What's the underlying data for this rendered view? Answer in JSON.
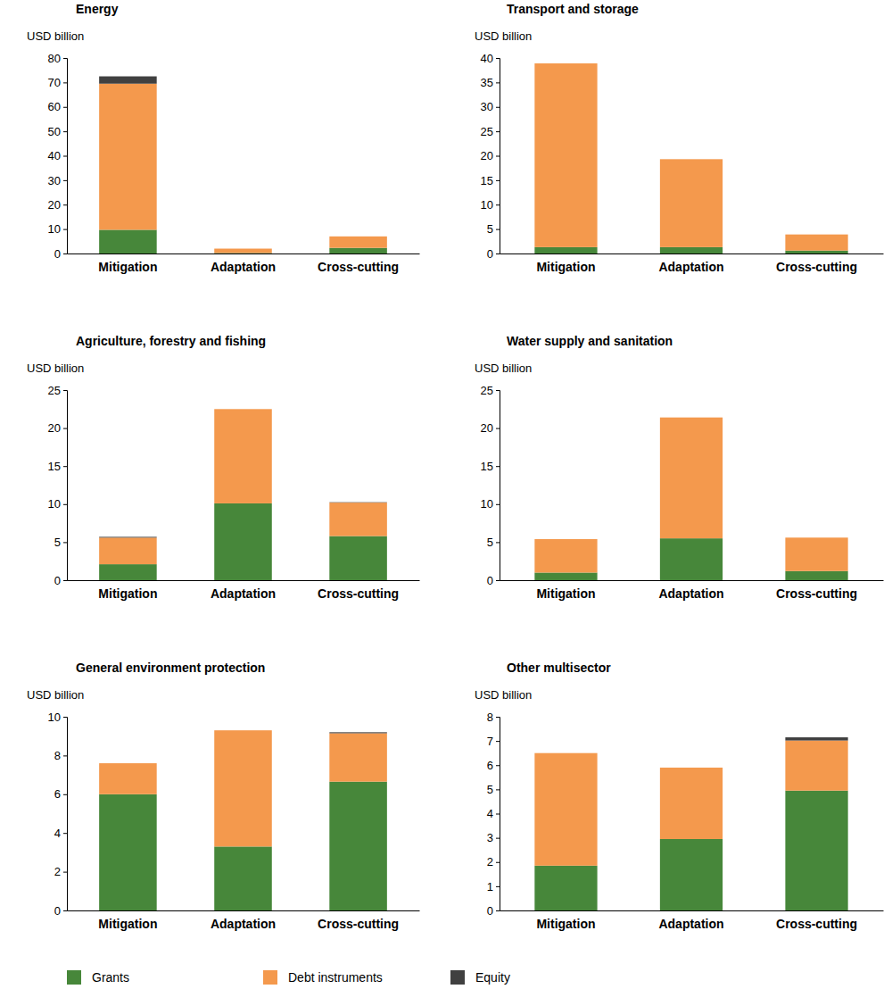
{
  "chart_data": [
    {
      "type": "bar",
      "title": "Energy",
      "ylabel": "USD billion",
      "stacked": true,
      "categories": [
        "Mitigation",
        "Adaptation",
        "Cross-cutting"
      ],
      "series": [
        {
          "name": "Grants",
          "color": "#47873a",
          "values": [
            9.7,
            0.2,
            2.3
          ]
        },
        {
          "name": "Debt instruments",
          "color": "#f4994d",
          "values": [
            59.8,
            1.8,
            4.7
          ]
        },
        {
          "name": "Equity",
          "color": "#404040",
          "values": [
            3.0,
            0,
            0
          ]
        }
      ],
      "ylim": [
        0,
        80
      ],
      "yticks": [
        0,
        10,
        20,
        30,
        40,
        50,
        60,
        70,
        80
      ]
    },
    {
      "type": "bar",
      "title": "Transport and storage",
      "ylabel": "USD billion",
      "stacked": true,
      "categories": [
        "Mitigation",
        "Adaptation",
        "Cross-cutting"
      ],
      "series": [
        {
          "name": "Grants",
          "color": "#47873a",
          "values": [
            1.3,
            1.3,
            0.6
          ]
        },
        {
          "name": "Debt instruments",
          "color": "#f4994d",
          "values": [
            37.6,
            18.0,
            3.3
          ]
        },
        {
          "name": "Equity",
          "color": "#404040",
          "values": [
            0,
            0,
            0
          ]
        }
      ],
      "ylim": [
        0,
        40
      ],
      "yticks": [
        0,
        5,
        10,
        15,
        20,
        25,
        30,
        35,
        40
      ]
    },
    {
      "type": "bar",
      "title": "Agriculture, forestry and fishing",
      "ylabel": "USD billion",
      "stacked": true,
      "categories": [
        "Mitigation",
        "Adaptation",
        "Cross-cutting"
      ],
      "series": [
        {
          "name": "Grants",
          "color": "#47873a",
          "values": [
            2.1,
            10.1,
            5.8
          ]
        },
        {
          "name": "Debt instruments",
          "color": "#f4994d",
          "values": [
            3.5,
            12.4,
            4.4
          ]
        },
        {
          "name": "Equity",
          "color": "#404040",
          "values": [
            0.1,
            0,
            0.05
          ]
        }
      ],
      "ylim": [
        0,
        25
      ],
      "yticks": [
        0,
        5,
        10,
        15,
        20,
        25
      ]
    },
    {
      "type": "bar",
      "title": "Water supply and sanitation",
      "ylabel": "USD billion",
      "stacked": true,
      "categories": [
        "Mitigation",
        "Adaptation",
        "Cross-cutting"
      ],
      "series": [
        {
          "name": "Grants",
          "color": "#47873a",
          "values": [
            1.0,
            5.5,
            1.2
          ]
        },
        {
          "name": "Debt instruments",
          "color": "#f4994d",
          "values": [
            4.4,
            15.9,
            4.4
          ]
        },
        {
          "name": "Equity",
          "color": "#404040",
          "values": [
            0,
            0,
            0
          ]
        }
      ],
      "ylim": [
        0,
        25
      ],
      "yticks": [
        0,
        5,
        10,
        15,
        20,
        25
      ]
    },
    {
      "type": "bar",
      "title": "General environment protection",
      "ylabel": "USD billion",
      "stacked": true,
      "categories": [
        "Mitigation",
        "Adaptation",
        "Cross-cutting"
      ],
      "series": [
        {
          "name": "Grants",
          "color": "#47873a",
          "values": [
            6.0,
            3.3,
            6.65
          ]
        },
        {
          "name": "Debt instruments",
          "color": "#f4994d",
          "values": [
            1.6,
            6.0,
            2.5
          ]
        },
        {
          "name": "Equity",
          "color": "#404040",
          "values": [
            0,
            0,
            0.05
          ]
        }
      ],
      "ylim": [
        0,
        10
      ],
      "yticks": [
        0,
        2,
        4,
        6,
        8,
        10
      ]
    },
    {
      "type": "bar",
      "title": "Other multisector",
      "ylabel": "USD billion",
      "stacked": true,
      "categories": [
        "Mitigation",
        "Adaptation",
        "Cross-cutting"
      ],
      "series": [
        {
          "name": "Grants",
          "color": "#47873a",
          "values": [
            1.85,
            2.95,
            4.95
          ]
        },
        {
          "name": "Debt instruments",
          "color": "#f4994d",
          "values": [
            4.65,
            2.95,
            2.07
          ]
        },
        {
          "name": "Equity",
          "color": "#404040",
          "values": [
            0,
            0,
            0.13
          ]
        }
      ],
      "ylim": [
        0,
        8
      ],
      "yticks": [
        0,
        1,
        2,
        3,
        4,
        5,
        6,
        7,
        8
      ]
    }
  ]
}
